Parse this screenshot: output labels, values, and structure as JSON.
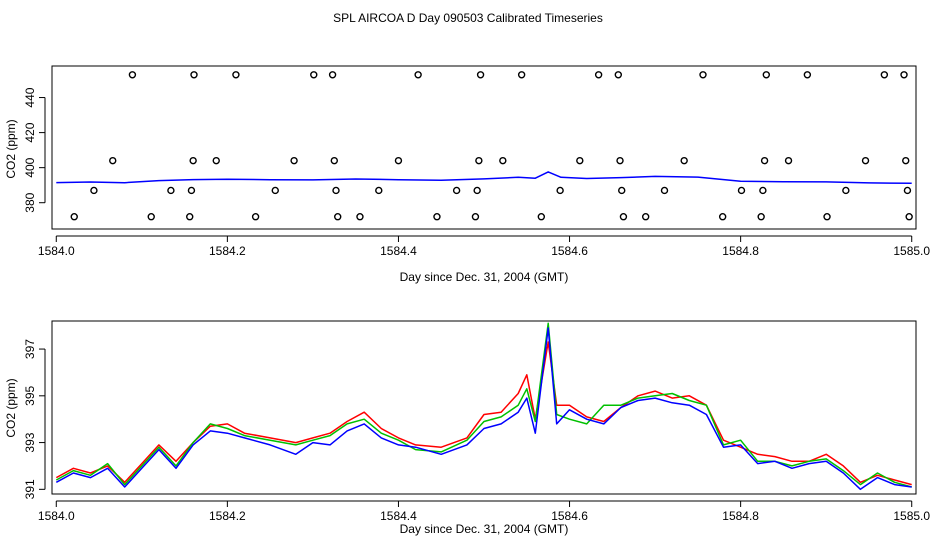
{
  "title": "SPL AIRCOA D  Day 090503  Calibrated Timeseries",
  "colors": {
    "red": "#ff0000",
    "green": "#00c000",
    "blue": "#0000ff",
    "black": "#000000"
  },
  "chart_data": [
    {
      "type": "scatter",
      "title": "SPL AIRCOA D  Day 090503  Calibrated Timeseries",
      "xlabel": "Day since Dec. 31, 2004 (GMT)",
      "ylabel": "CO2 (ppm)",
      "xlim": [
        1583.995,
        1585.005
      ],
      "ylim": [
        365,
        458
      ],
      "x_ticks": [
        "1584.0",
        "1584.2",
        "1584.4",
        "1584.6",
        "1584.8",
        "1585.0"
      ],
      "x_tick_values": [
        1584.0,
        1584.2,
        1584.4,
        1584.6,
        1584.8,
        1585.0
      ],
      "y_ticks": [
        "380",
        "400",
        "420",
        "440"
      ],
      "y_tick_values": [
        380,
        400,
        420,
        440
      ],
      "cal_points": [
        {
          "x": 1584.021,
          "y": 372
        },
        {
          "x": 1584.044,
          "y": 387
        },
        {
          "x": 1584.066,
          "y": 404
        },
        {
          "x": 1584.089,
          "y": 453
        },
        {
          "x": 1584.111,
          "y": 372
        },
        {
          "x": 1584.134,
          "y": 387
        },
        {
          "x": 1584.156,
          "y": 372
        },
        {
          "x": 1584.158,
          "y": 387
        },
        {
          "x": 1584.16,
          "y": 404
        },
        {
          "x": 1584.161,
          "y": 453
        },
        {
          "x": 1584.187,
          "y": 404
        },
        {
          "x": 1584.21,
          "y": 453
        },
        {
          "x": 1584.233,
          "y": 372
        },
        {
          "x": 1584.256,
          "y": 387
        },
        {
          "x": 1584.278,
          "y": 404
        },
        {
          "x": 1584.301,
          "y": 453
        },
        {
          "x": 1584.323,
          "y": 453
        },
        {
          "x": 1584.325,
          "y": 404
        },
        {
          "x": 1584.327,
          "y": 387
        },
        {
          "x": 1584.329,
          "y": 372
        },
        {
          "x": 1584.355,
          "y": 372
        },
        {
          "x": 1584.377,
          "y": 387
        },
        {
          "x": 1584.4,
          "y": 404
        },
        {
          "x": 1584.423,
          "y": 453
        },
        {
          "x": 1584.445,
          "y": 372
        },
        {
          "x": 1584.468,
          "y": 387
        },
        {
          "x": 1584.49,
          "y": 372
        },
        {
          "x": 1584.492,
          "y": 387
        },
        {
          "x": 1584.494,
          "y": 404
        },
        {
          "x": 1584.496,
          "y": 453
        },
        {
          "x": 1584.522,
          "y": 404
        },
        {
          "x": 1584.544,
          "y": 453
        },
        {
          "x": 1584.567,
          "y": 372
        },
        {
          "x": 1584.589,
          "y": 387
        },
        {
          "x": 1584.612,
          "y": 404
        },
        {
          "x": 1584.634,
          "y": 453
        },
        {
          "x": 1584.657,
          "y": 453
        },
        {
          "x": 1584.659,
          "y": 404
        },
        {
          "x": 1584.661,
          "y": 387
        },
        {
          "x": 1584.663,
          "y": 372
        },
        {
          "x": 1584.689,
          "y": 372
        },
        {
          "x": 1584.711,
          "y": 387
        },
        {
          "x": 1584.734,
          "y": 404
        },
        {
          "x": 1584.756,
          "y": 453
        },
        {
          "x": 1584.779,
          "y": 372
        },
        {
          "x": 1584.801,
          "y": 387
        },
        {
          "x": 1584.824,
          "y": 372
        },
        {
          "x": 1584.826,
          "y": 387
        },
        {
          "x": 1584.828,
          "y": 404
        },
        {
          "x": 1584.83,
          "y": 453
        },
        {
          "x": 1584.856,
          "y": 404
        },
        {
          "x": 1584.878,
          "y": 453
        },
        {
          "x": 1584.901,
          "y": 372
        },
        {
          "x": 1584.923,
          "y": 387
        },
        {
          "x": 1584.946,
          "y": 404
        },
        {
          "x": 1584.968,
          "y": 453
        },
        {
          "x": 1584.991,
          "y": 453
        },
        {
          "x": 1584.993,
          "y": 404
        },
        {
          "x": 1584.995,
          "y": 387
        },
        {
          "x": 1584.997,
          "y": 372
        }
      ],
      "trace_series": [
        {
          "name": "blue",
          "color": "#0000ff",
          "x": [
            1584.0,
            1584.04,
            1584.08,
            1584.12,
            1584.16,
            1584.2,
            1584.25,
            1584.3,
            1584.35,
            1584.4,
            1584.45,
            1584.5,
            1584.54,
            1584.56,
            1584.575,
            1584.59,
            1584.62,
            1584.66,
            1584.7,
            1584.75,
            1584.8,
            1584.85,
            1584.9,
            1584.95,
            1585.0
          ],
          "y": [
            391.5,
            391.8,
            391.4,
            392.6,
            393.2,
            393.4,
            393.1,
            393.0,
            393.5,
            393.1,
            392.8,
            393.6,
            394.5,
            394.0,
            397.6,
            394.5,
            393.8,
            394.3,
            395.0,
            394.6,
            392.3,
            392.0,
            391.9,
            391.3,
            391.1
          ]
        }
      ]
    },
    {
      "type": "line",
      "title": "",
      "xlabel": "Day since Dec. 31, 2004 (GMT)",
      "ylabel": "CO2 (ppm)",
      "xlim": [
        1583.995,
        1585.005
      ],
      "ylim": [
        390.8,
        398.2
      ],
      "x_ticks": [
        "1584.0",
        "1584.2",
        "1584.4",
        "1584.6",
        "1584.8",
        "1585.0"
      ],
      "x_tick_values": [
        1584.0,
        1584.2,
        1584.4,
        1584.6,
        1584.8,
        1585.0
      ],
      "y_ticks": [
        "391",
        "393",
        "395",
        "397"
      ],
      "y_tick_values": [
        391,
        393,
        395,
        397
      ],
      "series": [
        {
          "name": "red",
          "color": "#ff0000",
          "x": [
            1584.0,
            1584.02,
            1584.04,
            1584.06,
            1584.08,
            1584.1,
            1584.12,
            1584.14,
            1584.16,
            1584.18,
            1584.2,
            1584.22,
            1584.25,
            1584.28,
            1584.3,
            1584.32,
            1584.34,
            1584.36,
            1584.38,
            1584.4,
            1584.42,
            1584.45,
            1584.48,
            1584.5,
            1584.52,
            1584.54,
            1584.55,
            1584.56,
            1584.575,
            1584.585,
            1584.6,
            1584.62,
            1584.64,
            1584.66,
            1584.68,
            1584.7,
            1584.72,
            1584.74,
            1584.76,
            1584.78,
            1584.8,
            1584.82,
            1584.84,
            1584.86,
            1584.88,
            1584.9,
            1584.92,
            1584.94,
            1584.96,
            1584.98,
            1585.0
          ],
          "y": [
            391.5,
            391.9,
            391.7,
            392.0,
            391.3,
            392.1,
            392.9,
            392.2,
            393.0,
            393.7,
            393.8,
            393.4,
            393.2,
            393.0,
            393.2,
            393.4,
            393.9,
            394.3,
            393.6,
            393.2,
            392.9,
            392.8,
            393.2,
            394.2,
            394.3,
            395.1,
            395.9,
            394.0,
            397.3,
            394.6,
            394.6,
            394.1,
            393.9,
            394.5,
            395.0,
            395.2,
            394.9,
            395.0,
            394.6,
            393.1,
            392.8,
            392.5,
            392.4,
            392.2,
            392.2,
            392.5,
            392.0,
            391.3,
            391.6,
            391.4,
            391.2
          ]
        },
        {
          "name": "green",
          "color": "#00c000",
          "x": [
            1584.0,
            1584.02,
            1584.04,
            1584.06,
            1584.08,
            1584.1,
            1584.12,
            1584.14,
            1584.16,
            1584.18,
            1584.2,
            1584.22,
            1584.25,
            1584.28,
            1584.3,
            1584.32,
            1584.34,
            1584.36,
            1584.38,
            1584.4,
            1584.42,
            1584.45,
            1584.48,
            1584.5,
            1584.52,
            1584.54,
            1584.55,
            1584.56,
            1584.575,
            1584.585,
            1584.6,
            1584.62,
            1584.64,
            1584.66,
            1584.68,
            1584.7,
            1584.72,
            1584.74,
            1584.76,
            1584.78,
            1584.8,
            1584.82,
            1584.84,
            1584.86,
            1584.88,
            1584.9,
            1584.92,
            1584.94,
            1584.96,
            1584.98,
            1585.0
          ],
          "y": [
            391.4,
            391.8,
            391.6,
            392.1,
            391.2,
            392.0,
            392.8,
            392.0,
            393.0,
            393.8,
            393.6,
            393.3,
            393.1,
            392.9,
            393.1,
            393.3,
            393.8,
            394.0,
            393.4,
            393.1,
            392.7,
            392.6,
            393.1,
            393.9,
            394.1,
            394.6,
            395.3,
            393.9,
            398.1,
            394.2,
            394.0,
            393.8,
            394.6,
            394.6,
            394.9,
            395.0,
            395.1,
            394.8,
            394.6,
            392.9,
            393.1,
            392.2,
            392.2,
            392.0,
            392.2,
            392.3,
            391.8,
            391.2,
            391.7,
            391.3,
            391.1
          ]
        },
        {
          "name": "blue",
          "color": "#0000ff",
          "x": [
            1584.0,
            1584.02,
            1584.04,
            1584.06,
            1584.08,
            1584.1,
            1584.12,
            1584.14,
            1584.16,
            1584.18,
            1584.2,
            1584.22,
            1584.25,
            1584.28,
            1584.3,
            1584.32,
            1584.34,
            1584.36,
            1584.38,
            1584.4,
            1584.42,
            1584.45,
            1584.48,
            1584.5,
            1584.52,
            1584.54,
            1584.55,
            1584.56,
            1584.575,
            1584.585,
            1584.6,
            1584.62,
            1584.64,
            1584.66,
            1584.68,
            1584.7,
            1584.72,
            1584.74,
            1584.76,
            1584.78,
            1584.8,
            1584.82,
            1584.84,
            1584.86,
            1584.88,
            1584.9,
            1584.92,
            1584.94,
            1584.96,
            1584.98,
            1585.0
          ],
          "y": [
            391.3,
            391.7,
            391.5,
            391.9,
            391.1,
            391.9,
            392.7,
            391.9,
            392.9,
            393.5,
            393.4,
            393.2,
            392.9,
            392.5,
            393.0,
            392.9,
            393.5,
            393.8,
            393.2,
            392.9,
            392.8,
            392.5,
            392.9,
            393.6,
            393.8,
            394.3,
            394.9,
            393.4,
            397.9,
            393.8,
            394.4,
            394.0,
            393.8,
            394.5,
            394.8,
            394.9,
            394.7,
            394.6,
            394.2,
            392.8,
            392.9,
            392.1,
            392.2,
            391.9,
            392.1,
            392.2,
            391.7,
            391.0,
            391.5,
            391.2,
            391.1
          ]
        }
      ]
    }
  ]
}
